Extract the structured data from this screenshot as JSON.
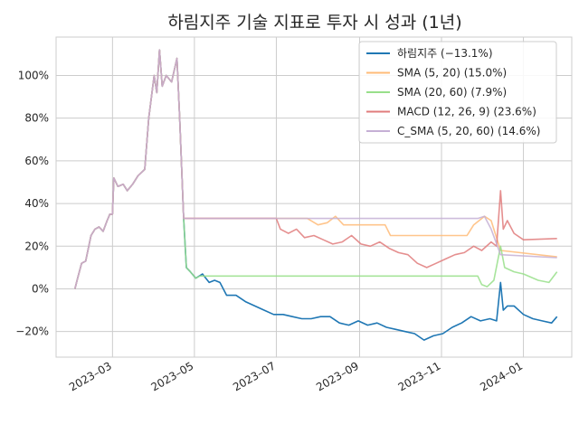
{
  "chart_data": {
    "type": "line",
    "title": "하림지주 기술 지표로 투자 시 성과 (1년)",
    "xlabel": "",
    "ylabel": "",
    "x_range": [
      "2023-01-18",
      "2024-02-06"
    ],
    "ylim": [
      -32,
      118
    ],
    "yticks": [
      -20,
      0,
      20,
      40,
      60,
      80,
      100
    ],
    "ytick_labels": [
      "−20%",
      "0%",
      "20%",
      "40%",
      "60%",
      "80%",
      "100%"
    ],
    "xticks": [
      "2023-03-01",
      "2023-05-01",
      "2023-07-01",
      "2023-09-01",
      "2023-11-01",
      "2024-01-01"
    ],
    "xtick_labels": [
      "2023–03",
      "2023–05",
      "2023–07",
      "2023–09",
      "2023–11",
      "2024–01"
    ],
    "grid": true,
    "legend_position": "top-right",
    "series": [
      {
        "name": "하림지주 (−13.1%)",
        "color": "#1f77b4",
        "points": [
          [
            "2023-02-01",
            0
          ],
          [
            "2023-02-03",
            5
          ],
          [
            "2023-02-06",
            12
          ],
          [
            "2023-02-09",
            13
          ],
          [
            "2023-02-13",
            25
          ],
          [
            "2023-02-16",
            28
          ],
          [
            "2023-02-19",
            29
          ],
          [
            "2023-02-22",
            27
          ],
          [
            "2023-02-25",
            32
          ],
          [
            "2023-02-27",
            35
          ],
          [
            "2023-03-01",
            35
          ],
          [
            "2023-03-02",
            52
          ],
          [
            "2023-03-05",
            48
          ],
          [
            "2023-03-09",
            49
          ],
          [
            "2023-03-12",
            46
          ],
          [
            "2023-03-16",
            49
          ],
          [
            "2023-03-20",
            53
          ],
          [
            "2023-03-25",
            56
          ],
          [
            "2023-03-28",
            80
          ],
          [
            "2023-04-01",
            100
          ],
          [
            "2023-04-03",
            92
          ],
          [
            "2023-04-05",
            112
          ],
          [
            "2023-04-07",
            95
          ],
          [
            "2023-04-10",
            100
          ],
          [
            "2023-04-14",
            97
          ],
          [
            "2023-04-18",
            108
          ],
          [
            "2023-04-20",
            80
          ],
          [
            "2023-04-23",
            33
          ],
          [
            "2023-04-25",
            10
          ],
          [
            "2023-04-28",
            8
          ],
          [
            "2023-05-02",
            5
          ],
          [
            "2023-05-07",
            7
          ],
          [
            "2023-05-12",
            3
          ],
          [
            "2023-05-16",
            4
          ],
          [
            "2023-05-20",
            3
          ],
          [
            "2023-05-25",
            -3
          ],
          [
            "2023-06-01",
            -3
          ],
          [
            "2023-06-08",
            -6
          ],
          [
            "2023-06-15",
            -8
          ],
          [
            "2023-06-22",
            -10
          ],
          [
            "2023-06-29",
            -12
          ],
          [
            "2023-07-06",
            -12
          ],
          [
            "2023-07-13",
            -13
          ],
          [
            "2023-07-20",
            -14
          ],
          [
            "2023-07-27",
            -14
          ],
          [
            "2023-08-03",
            -13
          ],
          [
            "2023-08-10",
            -13
          ],
          [
            "2023-08-17",
            -16
          ],
          [
            "2023-08-24",
            -17
          ],
          [
            "2023-08-31",
            -15
          ],
          [
            "2023-09-07",
            -17
          ],
          [
            "2023-09-14",
            -16
          ],
          [
            "2023-09-21",
            -18
          ],
          [
            "2023-09-28",
            -19
          ],
          [
            "2023-10-05",
            -20
          ],
          [
            "2023-10-12",
            -21
          ],
          [
            "2023-10-19",
            -24
          ],
          [
            "2023-10-26",
            -22
          ],
          [
            "2023-11-02",
            -21
          ],
          [
            "2023-11-09",
            -18
          ],
          [
            "2023-11-16",
            -16
          ],
          [
            "2023-11-23",
            -13
          ],
          [
            "2023-11-30",
            -15
          ],
          [
            "2023-12-07",
            -14
          ],
          [
            "2023-12-12",
            -15
          ],
          [
            "2023-12-15",
            3
          ],
          [
            "2023-12-17",
            -10
          ],
          [
            "2023-12-20",
            -8
          ],
          [
            "2023-12-25",
            -8
          ],
          [
            "2024-01-01",
            -12
          ],
          [
            "2024-01-08",
            -14
          ],
          [
            "2024-01-15",
            -15
          ],
          [
            "2024-01-22",
            -16
          ],
          [
            "2024-01-26",
            -13
          ]
        ]
      },
      {
        "name": "SMA (5, 20)  (15.0%)",
        "color": "#ffbb78",
        "points": [
          [
            "2023-02-01",
            0
          ],
          [
            "2023-02-03",
            5
          ],
          [
            "2023-02-06",
            12
          ],
          [
            "2023-02-09",
            13
          ],
          [
            "2023-02-13",
            25
          ],
          [
            "2023-02-16",
            28
          ],
          [
            "2023-02-19",
            29
          ],
          [
            "2023-02-22",
            27
          ],
          [
            "2023-02-25",
            32
          ],
          [
            "2023-02-27",
            35
          ],
          [
            "2023-03-01",
            35
          ],
          [
            "2023-03-02",
            52
          ],
          [
            "2023-03-05",
            48
          ],
          [
            "2023-03-09",
            49
          ],
          [
            "2023-03-12",
            46
          ],
          [
            "2023-03-16",
            49
          ],
          [
            "2023-03-20",
            53
          ],
          [
            "2023-03-25",
            56
          ],
          [
            "2023-03-28",
            80
          ],
          [
            "2023-04-01",
            100
          ],
          [
            "2023-04-03",
            92
          ],
          [
            "2023-04-05",
            112
          ],
          [
            "2023-04-07",
            95
          ],
          [
            "2023-04-10",
            100
          ],
          [
            "2023-04-14",
            97
          ],
          [
            "2023-04-18",
            108
          ],
          [
            "2023-04-20",
            80
          ],
          [
            "2023-04-23",
            33
          ],
          [
            "2023-07-24",
            33
          ],
          [
            "2023-08-01",
            30
          ],
          [
            "2023-08-08",
            31
          ],
          [
            "2023-08-14",
            34
          ],
          [
            "2023-08-20",
            30
          ],
          [
            "2023-09-01",
            30
          ],
          [
            "2023-09-20",
            30
          ],
          [
            "2023-09-24",
            25
          ],
          [
            "2023-11-20",
            25
          ],
          [
            "2023-11-25",
            30
          ],
          [
            "2023-12-03",
            34
          ],
          [
            "2023-12-08",
            32
          ],
          [
            "2023-12-15",
            18
          ],
          [
            "2024-01-26",
            15
          ]
        ]
      },
      {
        "name": "SMA (20, 60)  (7.9%)",
        "color": "#98df8a",
        "points": [
          [
            "2023-02-01",
            0
          ],
          [
            "2023-02-03",
            5
          ],
          [
            "2023-02-06",
            12
          ],
          [
            "2023-02-09",
            13
          ],
          [
            "2023-02-13",
            25
          ],
          [
            "2023-02-16",
            28
          ],
          [
            "2023-02-19",
            29
          ],
          [
            "2023-02-22",
            27
          ],
          [
            "2023-02-25",
            32
          ],
          [
            "2023-02-27",
            35
          ],
          [
            "2023-03-01",
            35
          ],
          [
            "2023-03-02",
            52
          ],
          [
            "2023-03-05",
            48
          ],
          [
            "2023-03-09",
            49
          ],
          [
            "2023-03-12",
            46
          ],
          [
            "2023-03-16",
            49
          ],
          [
            "2023-03-20",
            53
          ],
          [
            "2023-03-25",
            56
          ],
          [
            "2023-03-28",
            80
          ],
          [
            "2023-04-01",
            100
          ],
          [
            "2023-04-03",
            92
          ],
          [
            "2023-04-05",
            112
          ],
          [
            "2023-04-07",
            95
          ],
          [
            "2023-04-10",
            100
          ],
          [
            "2023-04-14",
            97
          ],
          [
            "2023-04-18",
            108
          ],
          [
            "2023-04-20",
            80
          ],
          [
            "2023-04-23",
            33
          ],
          [
            "2023-04-25",
            10
          ],
          [
            "2023-04-28",
            8
          ],
          [
            "2023-05-02",
            5
          ],
          [
            "2023-05-05",
            6
          ],
          [
            "2023-11-28",
            6
          ],
          [
            "2023-12-01",
            2
          ],
          [
            "2023-12-05",
            1
          ],
          [
            "2023-12-10",
            4
          ],
          [
            "2023-12-15",
            20
          ],
          [
            "2023-12-18",
            10
          ],
          [
            "2023-12-25",
            8
          ],
          [
            "2024-01-01",
            7
          ],
          [
            "2024-01-12",
            4
          ],
          [
            "2024-01-20",
            3
          ],
          [
            "2024-01-26",
            8
          ]
        ]
      },
      {
        "name": "MACD (12, 26, 9)  (23.6%)",
        "color": "#e07b7b",
        "points": [
          [
            "2023-02-01",
            0
          ],
          [
            "2023-02-03",
            5
          ],
          [
            "2023-02-06",
            12
          ],
          [
            "2023-02-09",
            13
          ],
          [
            "2023-02-13",
            25
          ],
          [
            "2023-02-16",
            28
          ],
          [
            "2023-02-19",
            29
          ],
          [
            "2023-02-22",
            27
          ],
          [
            "2023-02-25",
            32
          ],
          [
            "2023-02-27",
            35
          ],
          [
            "2023-03-01",
            35
          ],
          [
            "2023-03-02",
            52
          ],
          [
            "2023-03-05",
            48
          ],
          [
            "2023-03-09",
            49
          ],
          [
            "2023-03-12",
            46
          ],
          [
            "2023-03-16",
            49
          ],
          [
            "2023-03-20",
            53
          ],
          [
            "2023-03-25",
            56
          ],
          [
            "2023-03-28",
            80
          ],
          [
            "2023-04-01",
            100
          ],
          [
            "2023-04-03",
            92
          ],
          [
            "2023-04-05",
            112
          ],
          [
            "2023-04-07",
            95
          ],
          [
            "2023-04-10",
            100
          ],
          [
            "2023-04-14",
            97
          ],
          [
            "2023-04-18",
            108
          ],
          [
            "2023-04-20",
            80
          ],
          [
            "2023-04-23",
            33
          ],
          [
            "2023-07-01",
            33
          ],
          [
            "2023-07-04",
            28
          ],
          [
            "2023-07-10",
            26
          ],
          [
            "2023-07-16",
            28
          ],
          [
            "2023-07-22",
            24
          ],
          [
            "2023-07-29",
            25
          ],
          [
            "2023-08-05",
            23
          ],
          [
            "2023-08-12",
            21
          ],
          [
            "2023-08-19",
            22
          ],
          [
            "2023-08-26",
            25
          ],
          [
            "2023-09-02",
            21
          ],
          [
            "2023-09-09",
            20
          ],
          [
            "2023-09-16",
            22
          ],
          [
            "2023-09-23",
            19
          ],
          [
            "2023-09-30",
            17
          ],
          [
            "2023-10-07",
            16
          ],
          [
            "2023-10-14",
            12
          ],
          [
            "2023-10-21",
            10
          ],
          [
            "2023-10-28",
            12
          ],
          [
            "2023-11-04",
            14
          ],
          [
            "2023-11-11",
            16
          ],
          [
            "2023-11-18",
            17
          ],
          [
            "2023-11-25",
            20
          ],
          [
            "2023-12-01",
            18
          ],
          [
            "2023-12-08",
            22
          ],
          [
            "2023-12-12",
            20
          ],
          [
            "2023-12-15",
            46
          ],
          [
            "2023-12-17",
            28
          ],
          [
            "2023-12-20",
            32
          ],
          [
            "2023-12-25",
            26
          ],
          [
            "2024-01-01",
            23
          ],
          [
            "2024-01-26",
            23.6
          ]
        ]
      },
      {
        "name": "C_SMA (5, 20, 60)  (14.6%)",
        "color": "#c5b0d5",
        "points": [
          [
            "2023-02-01",
            0
          ],
          [
            "2023-02-03",
            5
          ],
          [
            "2023-02-06",
            12
          ],
          [
            "2023-02-09",
            13
          ],
          [
            "2023-02-13",
            25
          ],
          [
            "2023-02-16",
            28
          ],
          [
            "2023-02-19",
            29
          ],
          [
            "2023-02-22",
            27
          ],
          [
            "2023-02-25",
            32
          ],
          [
            "2023-02-27",
            35
          ],
          [
            "2023-03-01",
            35
          ],
          [
            "2023-03-02",
            52
          ],
          [
            "2023-03-05",
            48
          ],
          [
            "2023-03-09",
            49
          ],
          [
            "2023-03-12",
            46
          ],
          [
            "2023-03-16",
            49
          ],
          [
            "2023-03-20",
            53
          ],
          [
            "2023-03-25",
            56
          ],
          [
            "2023-03-28",
            80
          ],
          [
            "2023-04-01",
            100
          ],
          [
            "2023-04-03",
            92
          ],
          [
            "2023-04-05",
            112
          ],
          [
            "2023-04-07",
            95
          ],
          [
            "2023-04-10",
            100
          ],
          [
            "2023-04-14",
            97
          ],
          [
            "2023-04-18",
            108
          ],
          [
            "2023-04-20",
            80
          ],
          [
            "2023-04-23",
            33
          ],
          [
            "2023-11-28",
            33
          ],
          [
            "2023-12-03",
            34
          ],
          [
            "2023-12-08",
            28
          ],
          [
            "2023-12-15",
            16
          ],
          [
            "2024-01-26",
            14.6
          ]
        ]
      }
    ]
  }
}
